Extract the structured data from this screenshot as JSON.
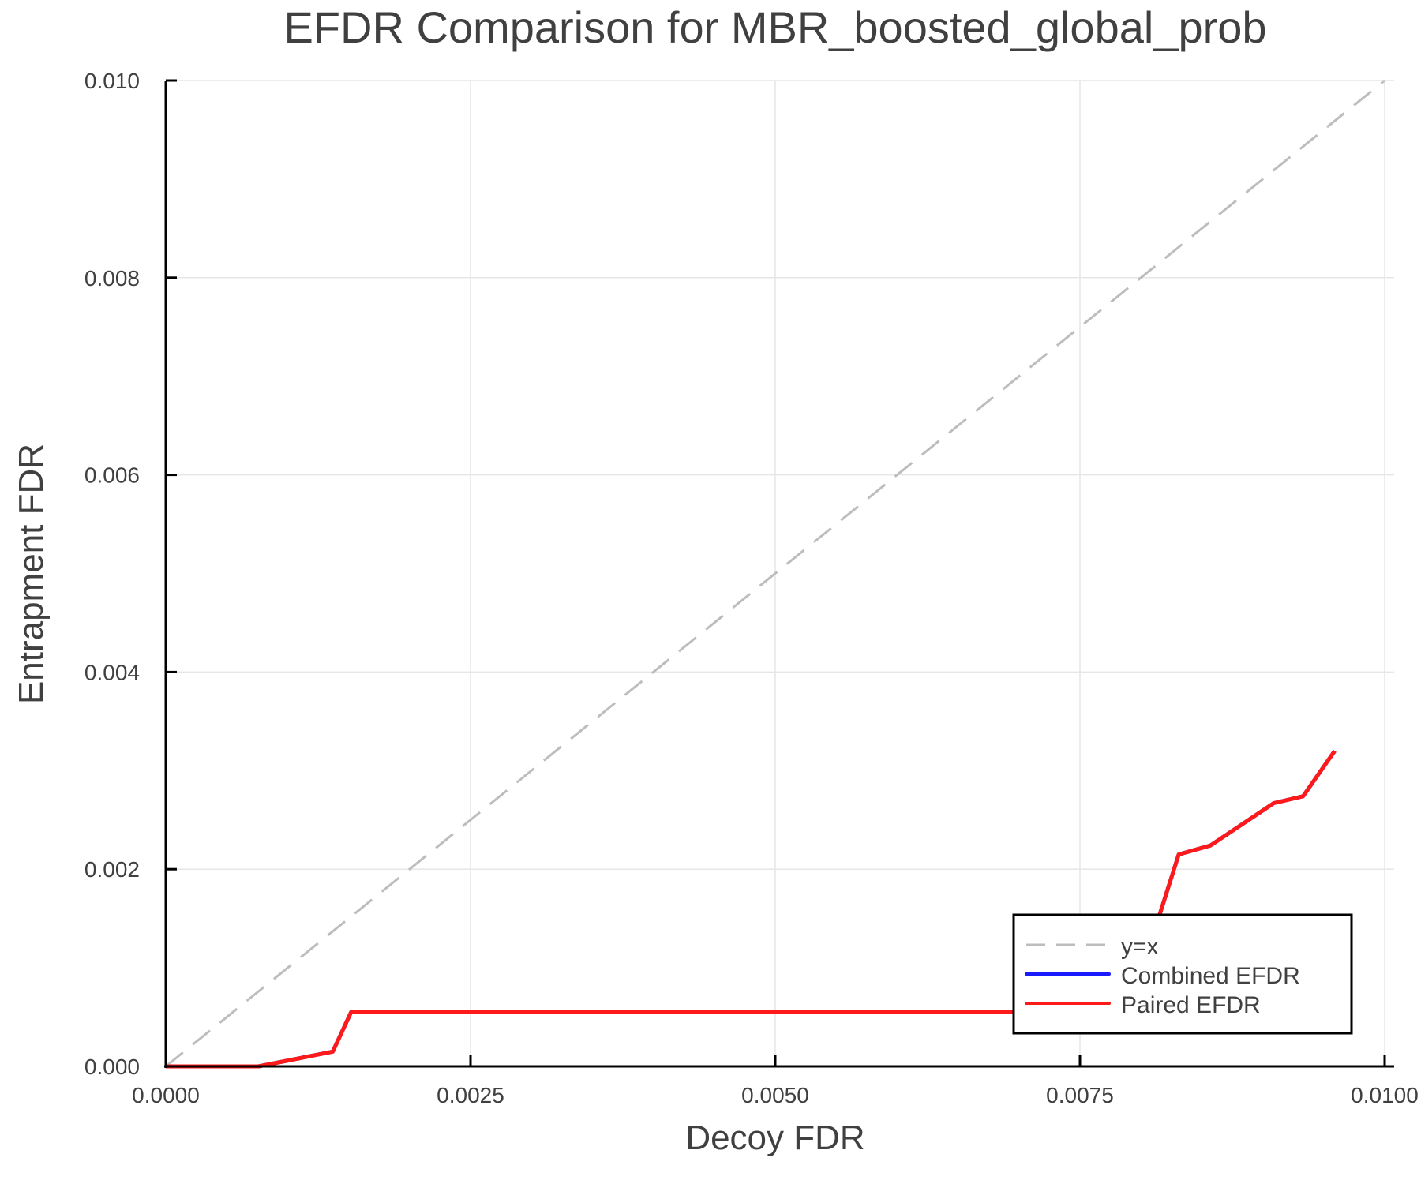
{
  "chart_data": {
    "type": "line",
    "title": "EFDR Comparison for MBR_boosted_global_prob",
    "xlabel": "Decoy FDR",
    "ylabel": "Entrapment FDR",
    "xlim": [
      0,
      0.01
    ],
    "ylim": [
      0,
      0.01
    ],
    "grid": true,
    "legend_position": "bottom-right",
    "x_ticks": [
      "0.0000",
      "0.0025",
      "0.0050",
      "0.0075",
      "0.0100"
    ],
    "x_tick_values": [
      0,
      0.0025,
      0.005,
      0.0075,
      0.01
    ],
    "y_ticks": [
      "0.000",
      "0.002",
      "0.004",
      "0.006",
      "0.008",
      "0.010"
    ],
    "y_tick_values": [
      0,
      0.002,
      0.004,
      0.006,
      0.008,
      0.01
    ],
    "series": [
      {
        "name": "y=x",
        "color": "#bdbdbd",
        "style": "dashed",
        "x": [
          0,
          0.01
        ],
        "y": [
          0,
          0.01
        ]
      },
      {
        "name": "Combined EFDR",
        "color": "#1a1aff",
        "style": "solid",
        "x": [
          0,
          0.00076,
          0.00137,
          0.00152,
          0.0079,
          0.00831,
          0.00857,
          0.00909,
          0.00933,
          0.00959
        ],
        "y": [
          0,
          0,
          0.00015,
          0.00055,
          0.00055,
          0.00215,
          0.00224,
          0.00267,
          0.00274,
          0.0032
        ]
      },
      {
        "name": "Paired EFDR",
        "color": "#ff1a1a",
        "style": "solid",
        "x": [
          0,
          0.00076,
          0.00137,
          0.00152,
          0.0079,
          0.00831,
          0.00857,
          0.00909,
          0.00933,
          0.00959
        ],
        "y": [
          0,
          0,
          0.00015,
          0.00055,
          0.00055,
          0.00215,
          0.00224,
          0.00267,
          0.00274,
          0.0032
        ]
      }
    ]
  },
  "legend": {
    "items": [
      {
        "label": "y=x"
      },
      {
        "label": "Combined EFDR"
      },
      {
        "label": "Paired EFDR"
      }
    ]
  }
}
